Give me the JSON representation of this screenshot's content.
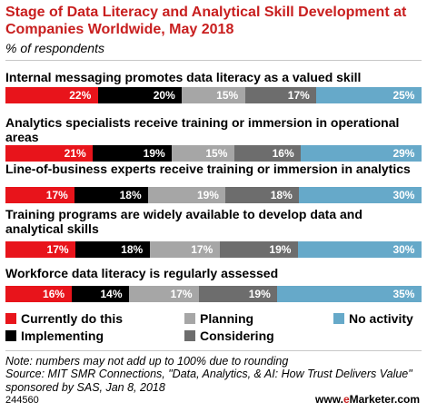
{
  "chart_data": {
    "type": "bar",
    "stacked": true,
    "orientation": "horizontal",
    "title": "Stage of Data Literacy and Analytical Skill Development at Companies Worldwide, May 2018",
    "subtitle": "% of respondents",
    "categories": [
      "Internal messaging promotes data literacy as a valued skill",
      "Analytics specialists receive training or immersion in operational areas",
      "Line-of-business experts receive training or immersion in analytics",
      "Training programs are widely available to develop data and analytical skills",
      "Workforce data literacy is regularly assessed"
    ],
    "series": [
      {
        "name": "Currently do this",
        "color": "#e8141b",
        "values": [
          22,
          21,
          17,
          17,
          16
        ]
      },
      {
        "name": "Implementing",
        "color": "#000000",
        "values": [
          20,
          19,
          18,
          18,
          14
        ]
      },
      {
        "name": "Planning",
        "color": "#a6a6a6",
        "values": [
          15,
          15,
          19,
          17,
          17
        ]
      },
      {
        "name": "Considering",
        "color": "#6d6d6d",
        "values": [
          17,
          16,
          18,
          19,
          19
        ]
      },
      {
        "name": "No activity",
        "color": "#66a9c9",
        "values": [
          25,
          29,
          30,
          30,
          35
        ]
      }
    ],
    "value_suffix": "%",
    "legend_position": "bottom"
  },
  "footer": {
    "note": "Note: numbers may not add up to 100% due to rounding",
    "source": "Source: MIT SMR Connections, \"Data, Analytics, & AI: How Trust Delivers Value\" sponsored by SAS, Jan 8, 2018",
    "chart_id": "244560",
    "brand_prefix": "www.",
    "brand_e": "e",
    "brand_suffix": "Marketer.com"
  }
}
